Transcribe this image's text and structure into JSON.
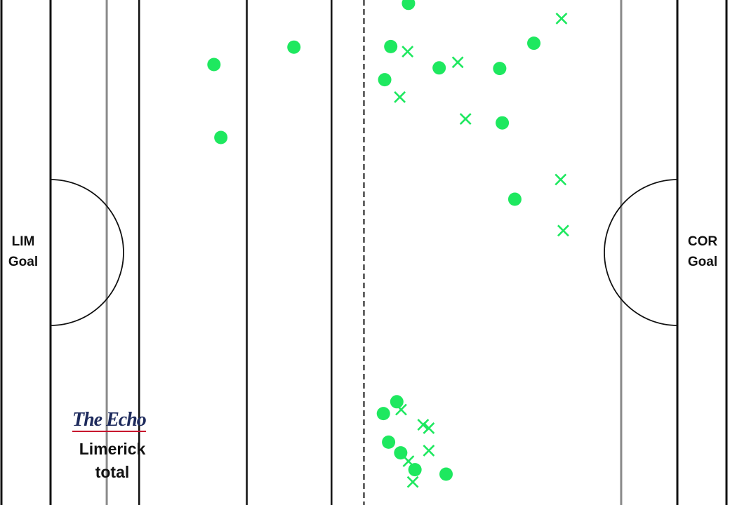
{
  "chart_data": {
    "type": "scatter",
    "description_of_axes": "pitch map",
    "xlim": [
      0,
      145
    ],
    "ylim": [
      0,
      90
    ],
    "grid": false,
    "marker_color": "#1ee85f",
    "lines": {
      "end_lines": [
        0,
        145
      ],
      "side_lines": [
        13,
        20.5,
        45.4,
        65,
        132
      ],
      "halfway_line": 72.5
    },
    "left_goal_label": "LIM\nGoal",
    "right_goal_label": "COR\nGoal",
    "series": [
      {
        "marker": "circle",
        "points": [
          [
            37.8,
            11.5
          ],
          [
            56.3,
            8.4
          ],
          [
            39.4,
            24.5
          ],
          [
            82.8,
            0.6
          ],
          [
            78.7,
            8.3
          ],
          [
            77.3,
            14.2
          ],
          [
            89.9,
            12.1
          ],
          [
            111.8,
            7.7
          ],
          [
            103.9,
            12.2
          ],
          [
            104.5,
            21.9
          ],
          [
            107.4,
            35.5
          ],
          [
            80.1,
            71.6
          ],
          [
            77.0,
            73.7
          ],
          [
            78.2,
            78.8
          ],
          [
            81.0,
            80.7
          ],
          [
            84.3,
            83.7
          ],
          [
            91.5,
            84.5
          ]
        ]
      },
      {
        "marker": "x",
        "points": [
          [
            118.2,
            3.3
          ],
          [
            82.6,
            9.2
          ],
          [
            94.2,
            11.1
          ],
          [
            80.8,
            17.3
          ],
          [
            96.0,
            21.2
          ],
          [
            118.0,
            32.0
          ],
          [
            118.6,
            41.1
          ],
          [
            81.1,
            73.0
          ],
          [
            86.2,
            75.7
          ],
          [
            87.5,
            76.3
          ],
          [
            87.5,
            80.3
          ],
          [
            82.8,
            82.2
          ],
          [
            83.8,
            85.9
          ]
        ]
      }
    ]
  },
  "brand": {
    "logo_text": "The Echo"
  },
  "caption": {
    "text": "Limerick\ntotal"
  }
}
